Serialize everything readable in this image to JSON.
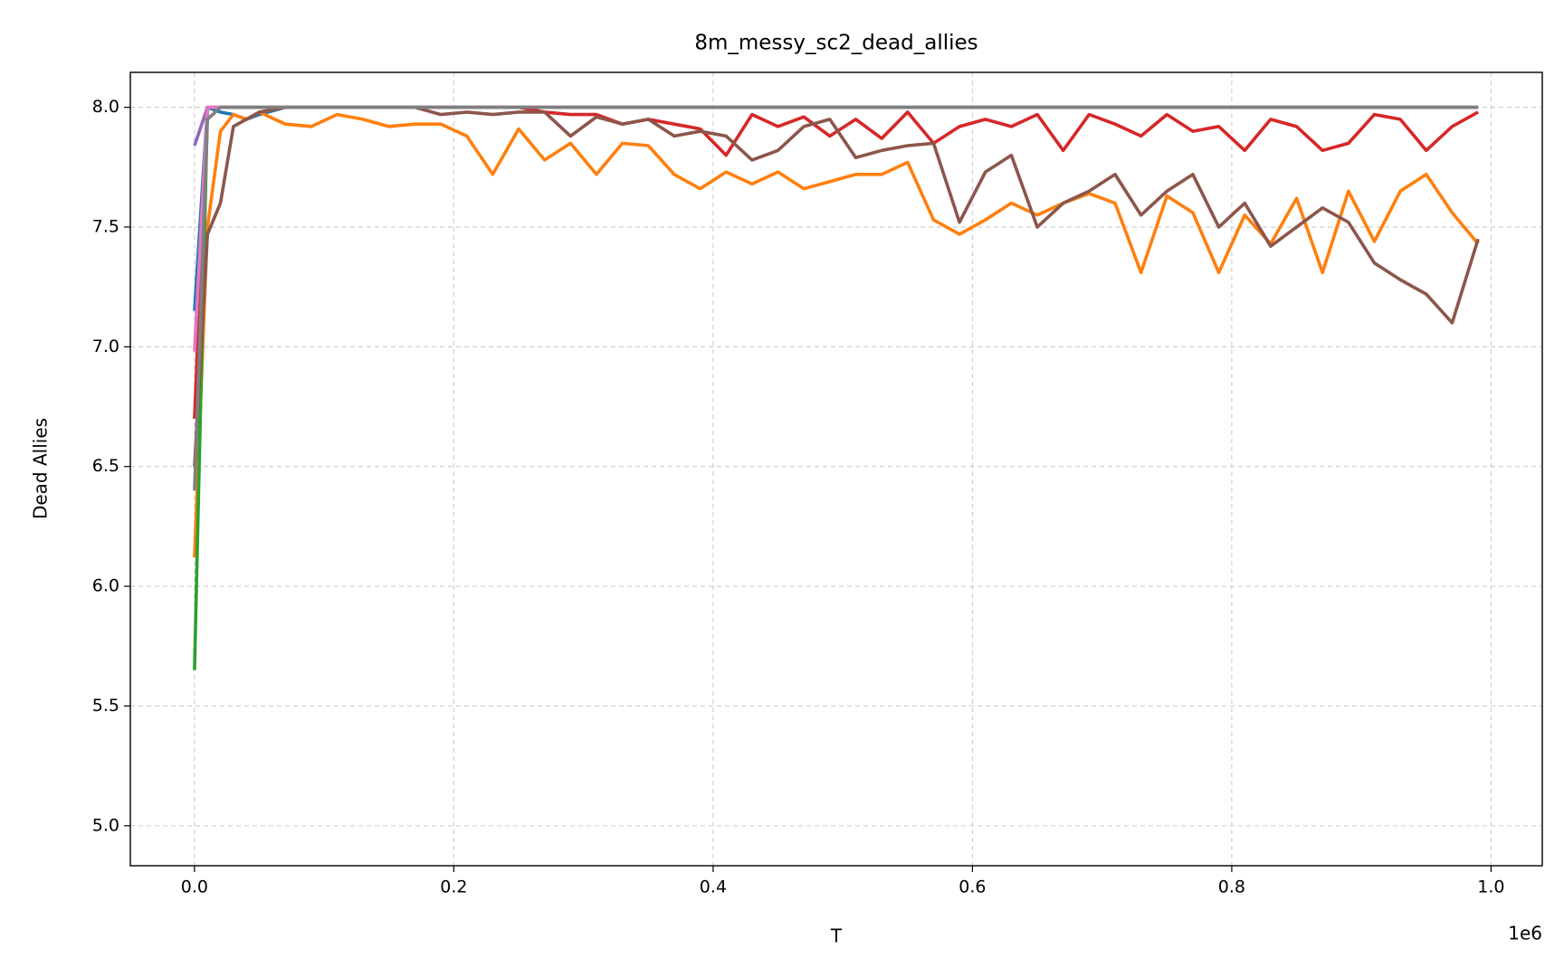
{
  "chart_data": {
    "type": "line",
    "title": "8m_messy_sc2_dead_allies",
    "x_label": "T",
    "y_label": "Dead Allies",
    "x_offset_label": "1e6",
    "x": [
      0,
      10000,
      20000,
      30000,
      40000,
      50000,
      70000,
      90000,
      110000,
      130000,
      150000,
      170000,
      190000,
      210000,
      230000,
      250000,
      270000,
      290000,
      310000,
      330000,
      350000,
      370000,
      390000,
      410000,
      430000,
      450000,
      470000,
      490000,
      510000,
      530000,
      550000,
      570000,
      590000,
      610000,
      630000,
      650000,
      670000,
      690000,
      710000,
      730000,
      750000,
      770000,
      790000,
      810000,
      830000,
      850000,
      870000,
      890000,
      910000,
      930000,
      950000,
      970000,
      990000
    ],
    "series": [
      {
        "name": "blue",
        "color": "#1f77b4",
        "values": [
          7.15,
          8,
          7.98,
          7.97,
          7.95,
          7.97,
          8,
          8,
          8,
          8,
          8,
          8,
          8,
          8,
          8,
          8,
          8,
          8,
          8,
          8,
          8,
          8,
          8,
          8,
          8,
          8,
          8,
          8,
          8,
          8,
          8,
          8,
          8,
          8,
          8,
          8,
          8,
          8,
          8,
          8,
          8,
          8,
          8,
          8,
          8,
          8,
          8,
          8,
          8,
          8,
          8,
          8,
          8
        ]
      },
      {
        "name": "orange",
        "color": "#ff7f0e",
        "values": [
          6.12,
          7.5,
          7.9,
          7.97,
          7.95,
          7.98,
          7.93,
          7.92,
          7.97,
          7.95,
          7.92,
          7.93,
          7.93,
          7.88,
          7.72,
          7.91,
          7.78,
          7.85,
          7.72,
          7.85,
          7.84,
          7.72,
          7.66,
          7.73,
          7.68,
          7.73,
          7.66,
          7.69,
          7.72,
          7.72,
          7.77,
          7.53,
          7.47,
          7.53,
          7.6,
          7.55,
          7.6,
          7.64,
          7.6,
          7.31,
          7.63,
          7.56,
          7.31,
          7.55,
          7.43,
          7.62,
          7.31,
          7.65,
          7.44,
          7.65,
          7.72,
          7.56,
          7.43
        ]
      },
      {
        "name": "green",
        "color": "#2ca02c",
        "values": [
          5.65,
          8,
          8,
          8,
          8,
          8,
          8,
          8,
          8,
          8,
          8,
          8,
          8,
          8,
          8,
          8,
          8,
          8,
          8,
          8,
          8,
          8,
          8,
          8,
          8,
          8,
          8,
          8,
          8,
          8,
          8,
          8,
          8,
          8,
          8,
          8,
          8,
          8,
          8,
          8,
          8,
          8,
          8,
          8,
          8,
          8,
          8,
          8,
          8,
          8,
          8,
          8,
          8
        ]
      },
      {
        "name": "red",
        "color": "#d62728",
        "values": [
          6.7,
          8,
          8,
          8,
          8,
          8,
          8,
          8,
          8,
          8,
          8,
          8,
          8,
          8,
          8,
          8,
          7.98,
          7.97,
          7.97,
          7.93,
          7.95,
          7.93,
          7.91,
          7.8,
          7.97,
          7.92,
          7.96,
          7.88,
          7.95,
          7.87,
          7.98,
          7.85,
          7.92,
          7.95,
          7.92,
          7.97,
          7.82,
          7.97,
          7.93,
          7.88,
          7.97,
          7.9,
          7.92,
          7.82,
          7.95,
          7.92,
          7.82,
          7.85,
          7.97,
          7.95,
          7.82,
          7.92,
          7.98
        ]
      },
      {
        "name": "purple",
        "color": "#9467bd",
        "values": [
          7.84,
          8,
          8,
          8,
          8,
          8,
          8,
          8,
          8,
          8,
          8,
          8,
          8,
          8,
          8,
          8,
          8,
          8,
          8,
          8,
          8,
          8,
          8,
          8,
          8,
          8,
          8,
          8,
          8,
          8,
          8,
          8,
          8,
          8,
          8,
          8,
          8,
          8,
          8,
          8,
          8,
          8,
          8,
          8,
          8,
          8,
          8,
          8,
          8,
          8,
          8,
          8,
          8
        ]
      },
      {
        "name": "brown",
        "color": "#8c564b",
        "values": [
          6.5,
          7.47,
          7.6,
          7.92,
          7.95,
          7.98,
          8,
          8,
          8,
          8,
          8,
          8,
          7.97,
          7.98,
          7.97,
          7.98,
          7.98,
          7.88,
          7.96,
          7.93,
          7.95,
          7.88,
          7.9,
          7.88,
          7.78,
          7.82,
          7.92,
          7.95,
          7.79,
          7.82,
          7.84,
          7.85,
          7.52,
          7.73,
          7.8,
          7.5,
          7.6,
          7.65,
          7.72,
          7.55,
          7.65,
          7.72,
          7.5,
          7.6,
          7.42,
          7.5,
          7.58,
          7.52,
          7.35,
          7.28,
          7.22,
          7.1,
          7.45
        ]
      },
      {
        "name": "pink",
        "color": "#e377c2",
        "values": [
          6.98,
          8,
          8,
          8,
          8,
          8,
          8,
          8,
          8,
          8,
          8,
          8,
          8,
          8,
          8,
          8,
          8,
          8,
          8,
          8,
          8,
          8,
          8,
          8,
          8,
          8,
          8,
          8,
          8,
          8,
          8,
          8,
          8,
          8,
          8,
          8,
          8,
          8,
          8,
          8,
          8,
          8,
          8,
          8,
          8,
          8,
          8,
          8,
          8,
          8,
          8,
          8,
          8
        ]
      },
      {
        "name": "gray",
        "color": "#7f7f7f",
        "values": [
          6.4,
          7.95,
          8,
          8,
          8,
          8,
          8,
          8,
          8,
          8,
          8,
          8,
          8,
          8,
          8,
          8,
          8,
          8,
          8,
          8,
          8,
          8,
          8,
          8,
          8,
          8,
          8,
          8,
          8,
          8,
          8,
          8,
          8,
          8,
          8,
          8,
          8,
          8,
          8,
          8,
          8,
          8,
          8,
          8,
          8,
          8,
          8,
          8,
          8,
          8,
          8,
          8,
          8
        ]
      }
    ],
    "xlim": [
      -49500,
      1039500
    ],
    "xticks": [
      {
        "value": 0,
        "label": "0.0"
      },
      {
        "value": 200000,
        "label": "0.2"
      },
      {
        "value": 400000,
        "label": "0.4"
      },
      {
        "value": 600000,
        "label": "0.6"
      },
      {
        "value": 800000,
        "label": "0.8"
      },
      {
        "value": 1000000,
        "label": "1.0"
      }
    ],
    "ylim": [
      4.833,
      8.146
    ],
    "yticks": [
      {
        "value": 5,
        "label": "5.0"
      },
      5.5,
      {
        "value": 6,
        "label": "6.0"
      },
      6.5,
      {
        "value": 7,
        "label": "7.0"
      },
      7.5,
      {
        "value": 8,
        "label": "8.0"
      }
    ],
    "grid": true
  }
}
